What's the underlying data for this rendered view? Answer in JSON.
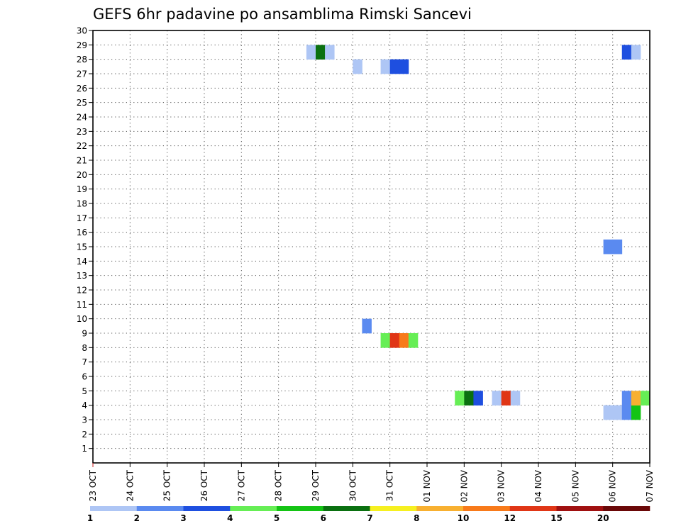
{
  "chart_data": {
    "type": "heatmap",
    "title": "GEFS 6hr padavine po ansamblima Rimski Sancevi",
    "xlabel": "",
    "ylabel": "",
    "x_tick_labels": [
      "23 OCT",
      "24 OCT",
      "25 OCT",
      "26 OCT",
      "27 OCT",
      "28 OCT",
      "29 OCT",
      "30 OCT",
      "31 OCT",
      "01 NOV",
      "02 NOV",
      "03 NOV",
      "04 NOV",
      "05 NOV",
      "06 NOV",
      "07 NOV"
    ],
    "y_range": [
      1,
      30
    ],
    "y_ticks": [
      1,
      2,
      3,
      4,
      5,
      6,
      7,
      8,
      9,
      10,
      11,
      12,
      13,
      14,
      15,
      16,
      17,
      18,
      19,
      20,
      21,
      22,
      23,
      24,
      25,
      26,
      27,
      28,
      29,
      30
    ],
    "grid": true,
    "colorbar": {
      "levels": [
        "1",
        "2",
        "3",
        "4",
        "5",
        "6",
        "7",
        "8",
        "10",
        "12",
        "15",
        "20"
      ],
      "colors": [
        "#aec6f5",
        "#5a8af0",
        "#1e4fe0",
        "#66ee55",
        "#14c414",
        "#0a7010",
        "#f6f020",
        "#f8b030",
        "#f87a1a",
        "#e03616",
        "#a01010",
        "#6a0808"
      ]
    },
    "cells": [
      {
        "day": 5.75,
        "member": 29,
        "level": 1
      },
      {
        "day": 6.0,
        "member": 29,
        "level": 6
      },
      {
        "day": 6.25,
        "member": 29,
        "level": 1
      },
      {
        "day": 7.0,
        "member": 28,
        "level": 1
      },
      {
        "day": 7.75,
        "member": 28,
        "level": 1
      },
      {
        "day": 8.0,
        "member": 28,
        "level": 3
      },
      {
        "day": 8.25,
        "member": 28,
        "level": 3
      },
      {
        "day": 7.25,
        "member": 10,
        "level": 2
      },
      {
        "day": 7.75,
        "member": 9,
        "level": 4
      },
      {
        "day": 8.0,
        "member": 9,
        "level": 10
      },
      {
        "day": 8.25,
        "member": 9,
        "level": 9
      },
      {
        "day": 8.5,
        "member": 9,
        "level": 4
      },
      {
        "day": 9.75,
        "member": 5,
        "level": 4
      },
      {
        "day": 10.0,
        "member": 5,
        "level": 6
      },
      {
        "day": 10.25,
        "member": 5,
        "level": 3
      },
      {
        "day": 10.75,
        "member": 5,
        "level": 1
      },
      {
        "day": 11.0,
        "member": 5,
        "level": 10
      },
      {
        "day": 11.25,
        "member": 5,
        "level": 1
      },
      {
        "day": 13.75,
        "member": 15.5,
        "level": 2
      },
      {
        "day": 14.0,
        "member": 15.5,
        "level": 2
      },
      {
        "day": 14.25,
        "member": 29,
        "level": 3
      },
      {
        "day": 14.5,
        "member": 29,
        "level": 1
      },
      {
        "day": 13.75,
        "member": 4,
        "level": 1
      },
      {
        "day": 14.0,
        "member": 4,
        "level": 1
      },
      {
        "day": 14.25,
        "member": 4,
        "level": 2
      },
      {
        "day": 14.5,
        "member": 4,
        "level": 5
      },
      {
        "day": 14.25,
        "member": 5,
        "level": 2
      },
      {
        "day": 14.5,
        "member": 5,
        "level": 8
      },
      {
        "day": 14.75,
        "member": 5,
        "level": 4
      }
    ]
  }
}
